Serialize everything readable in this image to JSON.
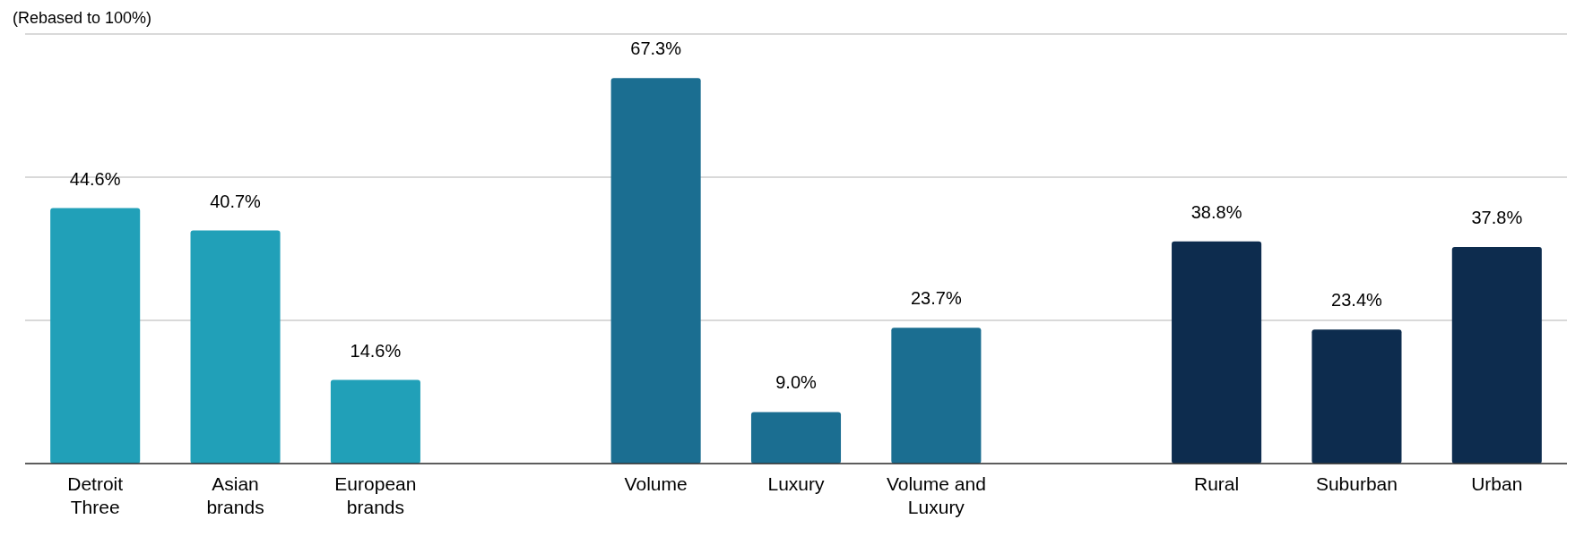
{
  "chart_data": {
    "type": "bar",
    "title": "(Rebased to 100%)",
    "categories": [
      "Detroit Three",
      "Asian brands",
      "European brands",
      null,
      "Volume",
      "Luxury",
      "Volume and Luxury",
      null,
      "Rural",
      "Suburban",
      "Urban"
    ],
    "values": [
      44.6,
      40.7,
      14.6,
      null,
      67.3,
      9.0,
      23.7,
      null,
      38.8,
      23.4,
      37.8
    ],
    "value_labels": [
      "44.6%",
      "40.7%",
      "14.6%",
      null,
      "67.3%",
      "9.0%",
      "23.7%",
      null,
      "38.8%",
      "23.4%",
      "37.8%"
    ],
    "colors": [
      "#21a0b8",
      "#21a0b8",
      "#21a0b8",
      null,
      "#1b6e91",
      "#1b6e91",
      "#1b6e91",
      null,
      "#0d2c4e",
      "#0d2c4e",
      "#0d2c4e"
    ],
    "ylim": [
      0,
      75
    ],
    "yticks": [
      {
        "value": 0,
        "label": null
      },
      {
        "value": 25,
        "label": null
      },
      {
        "value": 50,
        "label": null
      },
      {
        "value": 75,
        "label": null
      }
    ],
    "grid": "y",
    "tick_labels": "x"
  }
}
